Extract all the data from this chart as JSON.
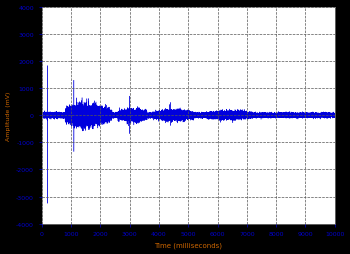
{
  "title": "",
  "xlabel": "Time (milliseconds)",
  "ylabel": "Amplitude (mV)",
  "xlim": [
    0,
    10000
  ],
  "ylim": [
    -4000,
    4000
  ],
  "xticks": [
    0,
    1000,
    2000,
    3000,
    4000,
    5000,
    6000,
    7000,
    8000,
    9000,
    10000
  ],
  "yticks": [
    -4000,
    -3000,
    -2000,
    -1000,
    0,
    1000,
    2000,
    3000,
    4000
  ],
  "line_color": "#0000dd",
  "background_color": "#000000",
  "plot_bg_color": "#ffffff",
  "grid_color": "#555555",
  "axis_label_color": "#cc6600",
  "tick_label_color": "#0000cc",
  "signal_seed": 42,
  "num_points": 50000
}
